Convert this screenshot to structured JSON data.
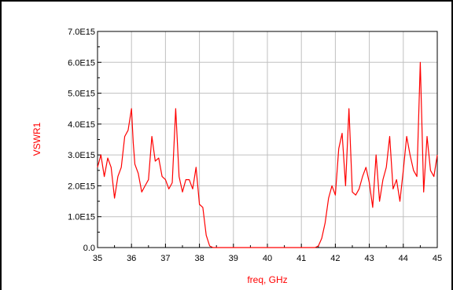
{
  "chart_data": {
    "type": "line",
    "title": "",
    "xlabel": "freq, GHz",
    "ylabel": "VSWR1",
    "xlim": [
      35,
      45
    ],
    "ylim": [
      0,
      7000000000000000.0
    ],
    "grid": true,
    "label_color": "#ff0000",
    "line_color": "#ff0000",
    "grid_color": "#c0c0c0",
    "x_ticks": [
      {
        "value": 35,
        "label": "35"
      },
      {
        "value": 36,
        "label": "36"
      },
      {
        "value": 37,
        "label": "37"
      },
      {
        "value": 38,
        "label": "38"
      },
      {
        "value": 39,
        "label": "39"
      },
      {
        "value": 40,
        "label": "40"
      },
      {
        "value": 41,
        "label": "41"
      },
      {
        "value": 42,
        "label": "42"
      },
      {
        "value": 43,
        "label": "43"
      },
      {
        "value": 44,
        "label": "44"
      },
      {
        "value": 45,
        "label": "45"
      }
    ],
    "y_ticks": [
      {
        "value": 0,
        "label": "0.0"
      },
      {
        "value": 1000000000000000.0,
        "label": "1.0E15"
      },
      {
        "value": 2000000000000000.0,
        "label": "2.0E15"
      },
      {
        "value": 3000000000000000.0,
        "label": "3.0E15"
      },
      {
        "value": 4000000000000000.0,
        "label": "4.0E15"
      },
      {
        "value": 5000000000000000.0,
        "label": "5.0E15"
      },
      {
        "value": 6000000000000000.0,
        "label": "6.0E15"
      },
      {
        "value": 7000000000000000.0,
        "label": "7.0E15"
      }
    ],
    "series": [
      {
        "x": [
          35.0,
          35.1,
          35.2,
          35.3,
          35.4,
          35.5,
          35.6,
          35.7,
          35.8,
          35.9,
          36.0,
          36.05,
          36.1,
          36.2,
          36.3,
          36.4,
          36.5,
          36.6,
          36.7,
          36.8,
          36.9,
          37.0,
          37.1,
          37.2,
          37.3,
          37.4,
          37.5,
          37.6,
          37.7,
          37.8,
          37.9,
          38.0,
          38.1,
          38.2,
          38.3,
          38.4,
          38.5,
          38.6,
          39.0,
          39.5,
          40.0,
          40.5,
          41.0,
          41.4,
          41.5,
          41.6,
          41.7,
          41.8,
          41.9,
          42.0,
          42.1,
          42.2,
          42.3,
          42.4,
          42.5,
          42.6,
          42.7,
          42.8,
          42.9,
          43.0,
          43.1,
          43.2,
          43.3,
          43.4,
          43.5,
          43.6,
          43.7,
          43.8,
          43.9,
          44.0,
          44.1,
          44.2,
          44.3,
          44.4,
          44.5,
          44.6,
          44.7,
          44.8,
          44.9,
          45.0
        ],
        "y": [
          2600000000000000.0,
          3000000000000000.0,
          2300000000000000.0,
          2900000000000000.0,
          2600000000000000.0,
          1600000000000000.0,
          2300000000000000.0,
          2600000000000000.0,
          3600000000000000.0,
          3800000000000000.0,
          4500000000000000.0,
          3400000000000000.0,
          2700000000000000.0,
          2400000000000000.0,
          1800000000000000.0,
          2000000000000000.0,
          2200000000000000.0,
          3600000000000000.0,
          2800000000000000.0,
          2900000000000000.0,
          2300000000000000.0,
          2200000000000000.0,
          1900000000000000.0,
          2100000000000000.0,
          4500000000000000.0,
          2300000000000000.0,
          1800000000000000.0,
          2200000000000000.0,
          2200000000000000.0,
          1900000000000000.0,
          2600000000000000.0,
          1400000000000000.0,
          1300000000000000.0,
          400000000000000.0,
          50000000000000.0,
          0,
          0,
          0,
          0,
          0,
          0,
          0,
          0,
          0,
          50000000000000.0,
          300000000000000.0,
          800000000000000.0,
          1600000000000000.0,
          2000000000000000.0,
          1700000000000000.0,
          3200000000000000.0,
          3700000000000000.0,
          2000000000000000.0,
          4500000000000000.0,
          1800000000000000.0,
          1700000000000000.0,
          1900000000000000.0,
          2300000000000000.0,
          2600000000000000.0,
          2100000000000000.0,
          1300000000000000.0,
          3000000000000000.0,
          1500000000000000.0,
          2200000000000000.0,
          2600000000000000.0,
          3600000000000000.0,
          1900000000000000.0,
          2200000000000000.0,
          1500000000000000.0,
          2500000000000000.0,
          3600000000000000.0,
          3000000000000000.0,
          2500000000000000.0,
          2300000000000000.0,
          6000000000000000.0,
          1800000000000000.0,
          3600000000000000.0,
          2500000000000000.0,
          2300000000000000.0,
          3000000000000000.0
        ]
      }
    ]
  }
}
